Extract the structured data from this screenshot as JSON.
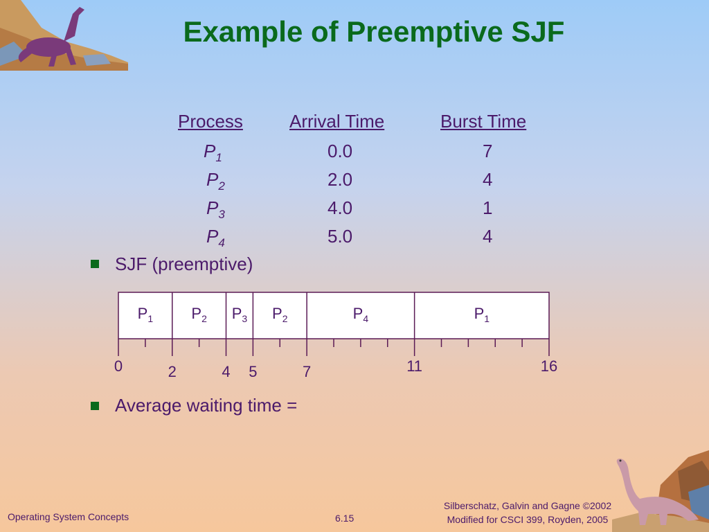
{
  "title": "Example of Preemptive SJF",
  "table": {
    "headers": [
      "Process",
      "Arrival Time",
      "Burst Time"
    ],
    "rows": [
      {
        "process": "P",
        "sub": "1",
        "arrival": "0.0",
        "burst": "7"
      },
      {
        "process": "P",
        "sub": "2",
        "arrival": "2.0",
        "burst": "4"
      },
      {
        "process": "P",
        "sub": "3",
        "arrival": "4.0",
        "burst": "1"
      },
      {
        "process": "P",
        "sub": "4",
        "arrival": "5.0",
        "burst": "4"
      }
    ]
  },
  "bullets": [
    "SJF (preemptive)",
    "Average waiting time ="
  ],
  "gantt": {
    "segments": [
      {
        "label": "P",
        "sub": "1",
        "start": 0,
        "end": 2
      },
      {
        "label": "P",
        "sub": "2",
        "start": 2,
        "end": 4
      },
      {
        "label": "P",
        "sub": "3",
        "start": 4,
        "end": 5
      },
      {
        "label": "P",
        "sub": "2",
        "start": 5,
        "end": 7
      },
      {
        "label": "P",
        "sub": "4",
        "start": 7,
        "end": 11
      },
      {
        "label": "P",
        "sub": "1",
        "start": 11,
        "end": 16
      }
    ],
    "time_labels": [
      "0",
      "2",
      "4",
      "5",
      "7",
      "11",
      "16"
    ],
    "time_values": [
      0,
      2,
      4,
      5,
      7,
      11,
      16
    ],
    "total": 16
  },
  "footer": {
    "left": "Operating System Concepts",
    "center": "6.15",
    "right_line1": "Silberschatz, Galvin and  Gagne ©2002",
    "right_line2": "Modified for CSCI 399, Royden, 2005"
  },
  "colors": {
    "title": "#0a6a1c",
    "text": "#4b1a6a",
    "bullet": "#0a6a1c",
    "chart_line": "#5a1a55"
  },
  "icons": {
    "top_left": "dinosaur-icon",
    "bottom_right": "dinosaur-icon"
  }
}
